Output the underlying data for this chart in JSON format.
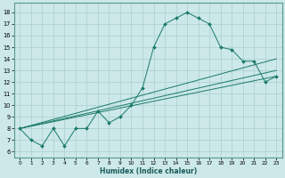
{
  "xlabel": "Humidex (Indice chaleur)",
  "bg_color": "#cce8e8",
  "grid_color": "#aacfcf",
  "line_color": "#1a7a6a",
  "spine_color": "#5a9a8a",
  "xlim": [
    -0.5,
    23.5
  ],
  "ylim": [
    5.5,
    18.8
  ],
  "xticks": [
    0,
    1,
    2,
    3,
    4,
    5,
    6,
    7,
    8,
    9,
    10,
    11,
    12,
    13,
    14,
    15,
    16,
    17,
    18,
    19,
    20,
    21,
    22,
    23
  ],
  "yticks": [
    6,
    7,
    8,
    9,
    10,
    11,
    12,
    13,
    14,
    15,
    16,
    17,
    18
  ],
  "main_curve": [
    [
      0,
      8.0
    ],
    [
      1,
      7.0
    ],
    [
      2,
      6.5
    ],
    [
      3,
      8.0
    ],
    [
      4,
      6.5
    ],
    [
      5,
      8.0
    ],
    [
      6,
      8.0
    ],
    [
      7,
      9.5
    ],
    [
      8,
      8.5
    ],
    [
      9,
      9.0
    ],
    [
      10,
      10.0
    ],
    [
      11,
      11.5
    ],
    [
      12,
      15.0
    ],
    [
      13,
      17.0
    ],
    [
      14,
      17.5
    ],
    [
      15,
      18.0
    ],
    [
      16,
      17.5
    ],
    [
      17,
      17.0
    ],
    [
      18,
      15.0
    ],
    [
      19,
      14.8
    ],
    [
      20,
      13.8
    ],
    [
      21,
      13.8
    ],
    [
      22,
      12.0
    ],
    [
      23,
      12.5
    ]
  ],
  "trend_lines": [
    [
      [
        0,
        8.0
      ],
      [
        23,
        14.0
      ]
    ],
    [
      [
        0,
        8.0
      ],
      [
        23,
        13.0
      ]
    ],
    [
      [
        0,
        8.0
      ],
      [
        23,
        12.5
      ]
    ]
  ]
}
